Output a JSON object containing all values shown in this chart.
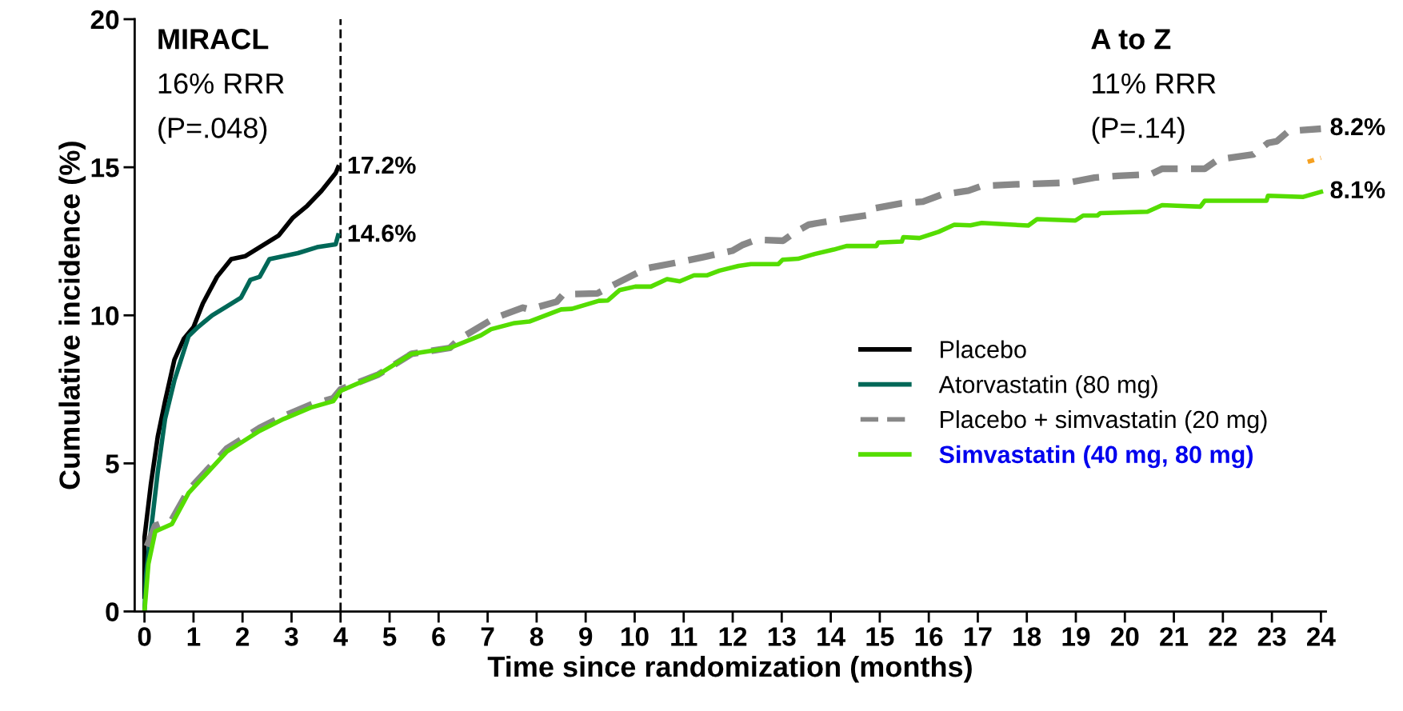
{
  "chart_data": {
    "type": "line",
    "xlabel": "Time since randomization (months)",
    "ylabel": "Cumulative incidence (%)",
    "xlim": [
      -0.2,
      24.1
    ],
    "xticks": [
      0,
      1,
      2,
      3,
      4,
      5,
      6,
      7,
      8,
      9,
      10,
      11,
      12,
      13,
      14,
      15,
      16,
      17,
      18,
      19,
      20,
      21,
      22,
      23,
      24
    ],
    "ylim": [
      0,
      20
    ],
    "yticks": [
      0,
      5,
      10,
      15,
      20
    ],
    "grid": false,
    "legend": "right",
    "marker": "none",
    "series": [
      {
        "name": "Placebo",
        "color": "#000000",
        "line_style": "solid",
        "x": [
          0,
          0,
          0.13,
          0.27,
          0.42,
          0.61,
          0.8,
          1.0,
          1.19,
          1.48,
          1.77,
          2.06,
          2.35,
          2.74,
          3.03,
          3.32,
          3.61,
          3.9,
          3.95
        ],
        "values": [
          0.5,
          2.5,
          4.3,
          5.9,
          7.1,
          8.5,
          9.2,
          9.6,
          10.4,
          11.3,
          11.9,
          12.0,
          12.3,
          12.7,
          13.3,
          13.7,
          14.2,
          14.8,
          15.0
        ]
      },
      {
        "name": "Atorvastatin (80 mg)",
        "color": "#006858",
        "line_style": "solid",
        "x": [
          0,
          0.03,
          0.13,
          0.27,
          0.42,
          0.61,
          0.9,
          1.09,
          1.38,
          1.68,
          1.97,
          2.16,
          2.35,
          2.55,
          2.84,
          3.13,
          3.52,
          3.9,
          3.95
        ],
        "values": [
          0,
          1.2,
          2.7,
          4.7,
          6.5,
          7.8,
          9.3,
          9.6,
          10.0,
          10.3,
          10.6,
          11.2,
          11.3,
          11.9,
          12.0,
          12.1,
          12.3,
          12.4,
          12.7
        ]
      },
      {
        "name": "Placebo + simvastatin (20 mg)",
        "color": "#888888",
        "line_style": "dashed",
        "x": [
          0.05,
          0.22,
          0.56,
          0.9,
          1.29,
          1.68,
          1.97,
          2.35,
          2.84,
          3.42,
          3.85,
          4.0,
          4.77,
          5.45,
          6.23,
          6.42,
          7.12,
          7.72,
          7.85,
          8.41,
          8.54,
          9.24,
          9.62,
          10.24,
          10.82,
          11.41,
          11.99,
          12.19,
          12.48,
          13.03,
          13.23,
          13.55,
          13.75,
          14.33,
          14.82,
          14.91,
          15.43,
          15.88,
          16.27,
          16.81,
          17.08,
          17.71,
          18.84,
          19.38,
          19.86,
          20.52,
          20.76,
          21.63,
          21.9,
          22.62,
          22.92,
          23.1,
          23.34,
          24
        ],
        "values": [
          2.2,
          2.9,
          3.1,
          4.1,
          4.8,
          5.5,
          5.8,
          6.2,
          6.6,
          7.0,
          7.2,
          7.5,
          8.0,
          8.7,
          8.9,
          9.2,
          9.89,
          10.26,
          10.2,
          10.46,
          10.71,
          10.74,
          11.07,
          11.59,
          11.77,
          11.97,
          12.18,
          12.37,
          12.55,
          12.52,
          12.76,
          13.06,
          13.12,
          13.28,
          13.4,
          13.62,
          13.78,
          13.84,
          14.08,
          14.21,
          14.37,
          14.42,
          14.48,
          14.65,
          14.71,
          14.76,
          14.95,
          14.95,
          15.26,
          15.43,
          15.82,
          15.88,
          16.22,
          16.3
        ]
      },
      {
        "name": "Simvastatin (40 mg, 80 mg)",
        "color": "#55dd00",
        "line_style": "solid",
        "x": [
          0,
          0.08,
          0.22,
          0.56,
          0.9,
          1.29,
          1.68,
          1.97,
          2.35,
          2.84,
          3.42,
          3.85,
          4.0,
          4.77,
          5.45,
          6.23,
          6.86,
          7.07,
          7.55,
          7.85,
          8.5,
          8.72,
          9.27,
          9.45,
          9.69,
          10.01,
          10.33,
          10.66,
          10.92,
          11.21,
          11.47,
          11.73,
          12.12,
          12.37,
          12.93,
          13.02,
          13.33,
          13.67,
          14.06,
          14.32,
          14.93,
          14.97,
          15.45,
          15.48,
          15.81,
          16.2,
          16.52,
          16.85,
          17.08,
          18.03,
          18.21,
          18.99,
          19.15,
          19.44,
          19.5,
          20.46,
          20.76,
          21.06,
          21.54,
          21.63,
          22.89,
          22.92,
          23.64,
          24
        ],
        "values": [
          0,
          1.6,
          2.7,
          2.95,
          4.0,
          4.7,
          5.4,
          5.7,
          6.1,
          6.5,
          6.9,
          7.1,
          7.45,
          8.0,
          8.7,
          8.9,
          9.32,
          9.53,
          9.74,
          9.79,
          10.2,
          10.22,
          10.49,
          10.5,
          10.85,
          10.97,
          10.97,
          11.22,
          11.15,
          11.35,
          11.35,
          11.51,
          11.67,
          11.73,
          11.73,
          11.88,
          11.91,
          12.07,
          12.22,
          12.34,
          12.34,
          12.46,
          12.49,
          12.64,
          12.61,
          12.82,
          13.06,
          13.04,
          13.12,
          13.03,
          13.25,
          13.2,
          13.37,
          13.37,
          13.45,
          13.5,
          13.72,
          13.7,
          13.67,
          13.87,
          13.87,
          14.04,
          14.0,
          14.17
        ]
      },
      {
        "color": "#f5a020",
        "line_style": "dotted",
        "x": [
          23.73,
          24
        ],
        "values": [
          15.18,
          15.32
        ]
      }
    ],
    "ref_lines": [
      {
        "axis": "x",
        "value": 4,
        "color": "#000000",
        "line_style": "dashed"
      }
    ],
    "annotations": [
      "MIRACL",
      "16% RRR",
      "(P=.048)",
      "A to Z",
      "11% RRR",
      "(P=.14)",
      "17.2%",
      "14.6%",
      "8.2%",
      "8.1%"
    ]
  }
}
